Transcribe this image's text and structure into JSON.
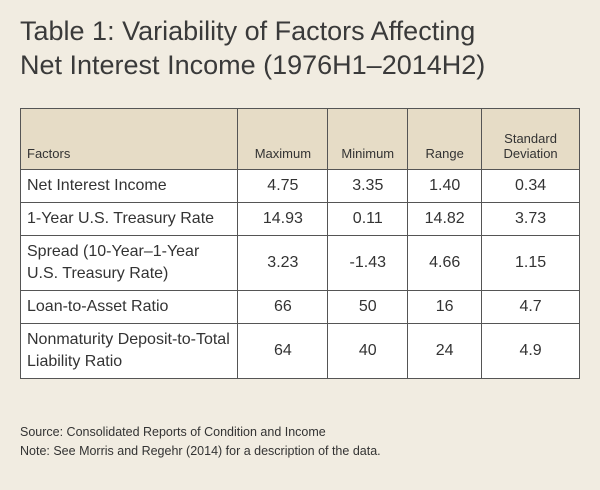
{
  "header": {
    "title": [
      "Table 1: Variability of Factors Affecting",
      "Net Interest Income (1976H1–2014H2)"
    ]
  },
  "table": {
    "columns": [
      "Factors",
      "Maximum",
      "Minimum",
      "Range",
      "Standard Deviation"
    ],
    "rows": [
      [
        "Net Interest Income",
        "4.75",
        "3.35",
        "1.40",
        "0.34"
      ],
      [
        "1-Year U.S. Treasury Rate",
        "14.93",
        "0.11",
        "14.82",
        "3.73"
      ],
      [
        "Spread (10-Year–1-Year U.S. Treasury Rate)",
        "3.23",
        "-1.43",
        "4.66",
        "1.15"
      ],
      [
        "Loan-to-Asset Ratio",
        "66",
        "50",
        "16",
        "4.7"
      ],
      [
        "Nonmaturity Deposit-to-Total Liability Ratio",
        "64",
        "40",
        "24",
        "4.9"
      ]
    ]
  },
  "footer": {
    "notes": [
      "Source: Consolidated Reports of Condition and Income",
      "Note: See Morris and Regehr (2014) for a description of the data."
    ]
  }
}
